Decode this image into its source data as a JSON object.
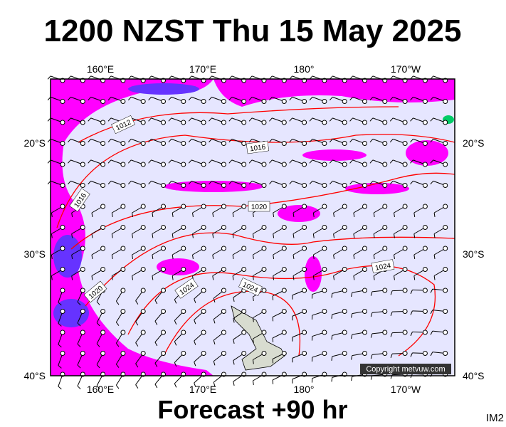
{
  "header": {
    "title": "1200 NZST Thu 15 May 2025"
  },
  "footer": {
    "forecast": "Forecast +90 hr",
    "badge": "IM2"
  },
  "map": {
    "copyright": "Copyright metvuw.com",
    "lon_labels_top": [
      "160°E",
      "170°E",
      "180°",
      "170°W"
    ],
    "lon_labels_bottom": [
      "160°E",
      "170°E",
      "180°",
      "170°W"
    ],
    "lat_labels_left": [
      "20°S",
      "30°S",
      "40°S"
    ],
    "lat_labels_right": [
      "20°S",
      "30°S",
      "40°S"
    ],
    "isobar_labels": [
      "1012",
      "1016",
      "1016",
      "1020",
      "1020",
      "1024",
      "1024",
      "1024"
    ]
  }
}
